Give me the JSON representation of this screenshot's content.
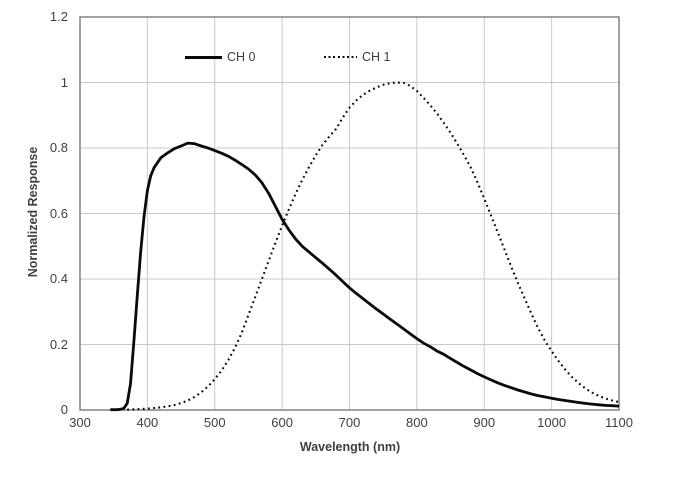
{
  "chart_data": {
    "type": "line",
    "title": "",
    "xlabel": "Wavelength (nm)",
    "ylabel": "Normalized Response",
    "xlim": [
      300,
      1100
    ],
    "ylim": [
      0,
      1.2
    ],
    "grid": true,
    "legend_position": "top-inside",
    "x_ticks": [
      "300",
      "400",
      "500",
      "600",
      "700",
      "800",
      "900",
      "1000",
      "1100"
    ],
    "y_ticks": [
      "0",
      "0.2",
      "0.4",
      "0.6",
      "0.8",
      "1",
      "1.2"
    ],
    "colors": {
      "grid": "#c9c9c9",
      "axis": "#7a7a7a",
      "line": "#0a0a0a",
      "text": "#3f3f3f",
      "background": "#ffffff"
    },
    "series": [
      {
        "name": "CH 0",
        "style": "solid",
        "color": "#0a0a0a",
        "points": [
          [
            345,
            0.001
          ],
          [
            350,
            0.001
          ],
          [
            355,
            0.001
          ],
          [
            360,
            0.002
          ],
          [
            365,
            0.005
          ],
          [
            370,
            0.02
          ],
          [
            375,
            0.08
          ],
          [
            380,
            0.21
          ],
          [
            385,
            0.35
          ],
          [
            390,
            0.48
          ],
          [
            395,
            0.59
          ],
          [
            400,
            0.67
          ],
          [
            405,
            0.715
          ],
          [
            410,
            0.74
          ],
          [
            420,
            0.77
          ],
          [
            430,
            0.785
          ],
          [
            440,
            0.798
          ],
          [
            450,
            0.806
          ],
          [
            460,
            0.815
          ],
          [
            470,
            0.813
          ],
          [
            480,
            0.806
          ],
          [
            490,
            0.8
          ],
          [
            500,
            0.792
          ],
          [
            510,
            0.784
          ],
          [
            520,
            0.775
          ],
          [
            530,
            0.763
          ],
          [
            540,
            0.75
          ],
          [
            550,
            0.736
          ],
          [
            560,
            0.718
          ],
          [
            570,
            0.694
          ],
          [
            580,
            0.662
          ],
          [
            590,
            0.622
          ],
          [
            600,
            0.582
          ],
          [
            610,
            0.55
          ],
          [
            620,
            0.522
          ],
          [
            630,
            0.5
          ],
          [
            640,
            0.482
          ],
          [
            650,
            0.465
          ],
          [
            660,
            0.448
          ],
          [
            670,
            0.43
          ],
          [
            680,
            0.412
          ],
          [
            690,
            0.392
          ],
          [
            700,
            0.373
          ],
          [
            710,
            0.356
          ],
          [
            720,
            0.34
          ],
          [
            730,
            0.324
          ],
          [
            740,
            0.308
          ],
          [
            750,
            0.293
          ],
          [
            760,
            0.278
          ],
          [
            770,
            0.263
          ],
          [
            780,
            0.248
          ],
          [
            790,
            0.233
          ],
          [
            800,
            0.218
          ],
          [
            810,
            0.204
          ],
          [
            820,
            0.193
          ],
          [
            830,
            0.18
          ],
          [
            840,
            0.17
          ],
          [
            850,
            0.157
          ],
          [
            860,
            0.145
          ],
          [
            870,
            0.133
          ],
          [
            880,
            0.122
          ],
          [
            890,
            0.111
          ],
          [
            900,
            0.101
          ],
          [
            910,
            0.092
          ],
          [
            920,
            0.083
          ],
          [
            930,
            0.075
          ],
          [
            940,
            0.068
          ],
          [
            950,
            0.061
          ],
          [
            960,
            0.055
          ],
          [
            970,
            0.049
          ],
          [
            980,
            0.044
          ],
          [
            990,
            0.04
          ],
          [
            1000,
            0.036
          ],
          [
            1010,
            0.032
          ],
          [
            1020,
            0.029
          ],
          [
            1030,
            0.026
          ],
          [
            1040,
            0.023
          ],
          [
            1050,
            0.02
          ],
          [
            1060,
            0.018
          ],
          [
            1070,
            0.016
          ],
          [
            1080,
            0.014
          ],
          [
            1090,
            0.013
          ],
          [
            1100,
            0.012
          ]
        ]
      },
      {
        "name": "CH 1",
        "style": "dotted",
        "color": "#0a0a0a",
        "points": [
          [
            370,
            0.001
          ],
          [
            380,
            0.002
          ],
          [
            390,
            0.003
          ],
          [
            400,
            0.004
          ],
          [
            410,
            0.006
          ],
          [
            420,
            0.008
          ],
          [
            430,
            0.011
          ],
          [
            440,
            0.015
          ],
          [
            450,
            0.021
          ],
          [
            460,
            0.029
          ],
          [
            470,
            0.04
          ],
          [
            480,
            0.054
          ],
          [
            490,
            0.072
          ],
          [
            500,
            0.094
          ],
          [
            510,
            0.12
          ],
          [
            520,
            0.152
          ],
          [
            530,
            0.19
          ],
          [
            540,
            0.235
          ],
          [
            550,
            0.29
          ],
          [
            560,
            0.345
          ],
          [
            570,
            0.4
          ],
          [
            580,
            0.455
          ],
          [
            590,
            0.51
          ],
          [
            600,
            0.563
          ],
          [
            610,
            0.613
          ],
          [
            620,
            0.66
          ],
          [
            630,
            0.703
          ],
          [
            640,
            0.742
          ],
          [
            650,
            0.778
          ],
          [
            660,
            0.81
          ],
          [
            670,
            0.835
          ],
          [
            680,
            0.858
          ],
          [
            690,
            0.893
          ],
          [
            700,
            0.923
          ],
          [
            710,
            0.945
          ],
          [
            720,
            0.962
          ],
          [
            730,
            0.975
          ],
          [
            740,
            0.985
          ],
          [
            750,
            0.993
          ],
          [
            760,
            0.998
          ],
          [
            770,
            1.0
          ],
          [
            780,
            0.999
          ],
          [
            790,
            0.99
          ],
          [
            800,
            0.974
          ],
          [
            810,
            0.953
          ],
          [
            820,
            0.93
          ],
          [
            830,
            0.905
          ],
          [
            840,
            0.877
          ],
          [
            850,
            0.846
          ],
          [
            860,
            0.813
          ],
          [
            870,
            0.778
          ],
          [
            880,
            0.74
          ],
          [
            890,
            0.695
          ],
          [
            900,
            0.645
          ],
          [
            910,
            0.594
          ],
          [
            920,
            0.543
          ],
          [
            930,
            0.49
          ],
          [
            940,
            0.438
          ],
          [
            950,
            0.388
          ],
          [
            960,
            0.34
          ],
          [
            970,
            0.294
          ],
          [
            980,
            0.25
          ],
          [
            990,
            0.212
          ],
          [
            1000,
            0.18
          ],
          [
            1010,
            0.15
          ],
          [
            1020,
            0.124
          ],
          [
            1030,
            0.101
          ],
          [
            1040,
            0.082
          ],
          [
            1050,
            0.066
          ],
          [
            1060,
            0.053
          ],
          [
            1070,
            0.043
          ],
          [
            1080,
            0.035
          ],
          [
            1090,
            0.029
          ],
          [
            1100,
            0.024
          ]
        ]
      }
    ]
  }
}
